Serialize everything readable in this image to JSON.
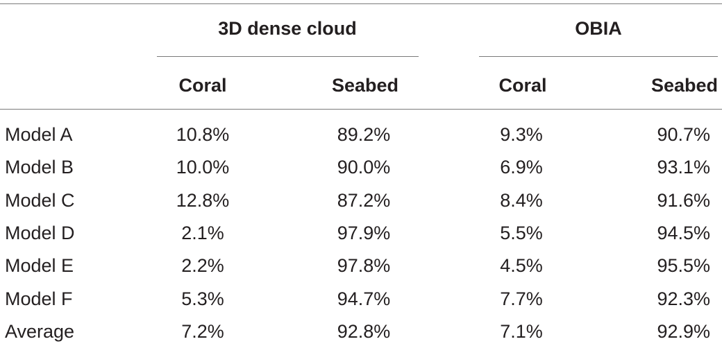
{
  "table": {
    "groups": [
      {
        "label": "3D dense cloud"
      },
      {
        "label": "OBIA"
      }
    ],
    "subheaders": [
      "Coral",
      "Seabed",
      "Coral",
      "Seabed"
    ],
    "rows": [
      {
        "label": "Model A",
        "values": [
          "10.8%",
          "89.2%",
          "9.3%",
          "90.7%"
        ]
      },
      {
        "label": "Model B",
        "values": [
          "10.0%",
          "90.0%",
          "6.9%",
          "93.1%"
        ]
      },
      {
        "label": "Model C",
        "values": [
          "12.8%",
          "87.2%",
          "8.4%",
          "91.6%"
        ]
      },
      {
        "label": "Model D",
        "values": [
          "2.1%",
          "97.9%",
          "5.5%",
          "94.5%"
        ]
      },
      {
        "label": "Model E",
        "values": [
          "2.2%",
          "97.8%",
          "4.5%",
          "95.5%"
        ]
      },
      {
        "label": "Model F",
        "values": [
          "5.3%",
          "94.7%",
          "7.7%",
          "92.3%"
        ]
      },
      {
        "label": "Average",
        "values": [
          "7.2%",
          "92.8%",
          "7.1%",
          "92.9%"
        ]
      }
    ]
  }
}
